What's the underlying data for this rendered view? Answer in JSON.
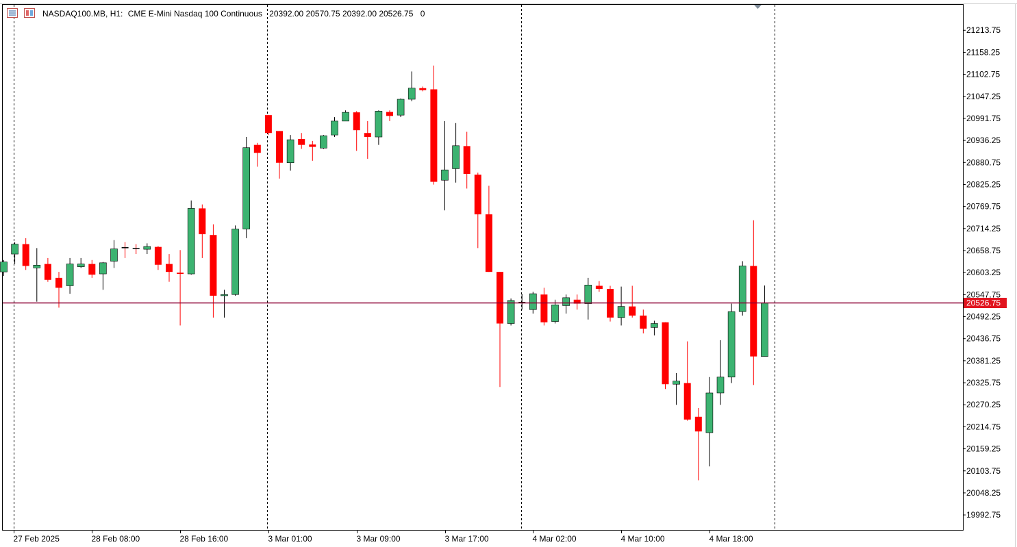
{
  "header": {
    "symbol": "NASDAQ100.MB, H1:",
    "description": "CME E-Mini Nasdaq 100 Continuous",
    "ohlc": "20392.00 20570.75 20392.00 20526.75",
    "extra": "0"
  },
  "colors": {
    "bull": "#3cb371",
    "bear": "#ff0000",
    "price_line": "#8b0033",
    "price_tag_bg": "#e1141e",
    "grid": "#000000"
  },
  "chart_data": {
    "type": "candlestick",
    "symbol": "NASDAQ100.MB",
    "timeframe": "H1",
    "title": "CME E-Mini Nasdaq 100 Continuous",
    "current_price": 20526.75,
    "current_price_label": "20526.75",
    "ylim": [
      19955,
      21278
    ],
    "y_ticks": [
      "21213.75",
      "21158.25",
      "21102.75",
      "21047.25",
      "20991.75",
      "20936.25",
      "20880.75",
      "20825.25",
      "20769.75",
      "20714.25",
      "20658.75",
      "20603.25",
      "20547.75",
      "20492.25",
      "20436.75",
      "20381.25",
      "20325.75",
      "20270.25",
      "20214.75",
      "20159.25",
      "20103.75",
      "20048.25",
      "19992.75"
    ],
    "x_ticks": [
      "27 Feb 2025",
      "28 Feb 08:00",
      "28 Feb 16:00",
      "3 Mar 01:00",
      "3 Mar 09:00",
      "3 Mar 17:00",
      "4 Mar 02:00",
      "4 Mar 10:00",
      "4 Mar 18:00"
    ],
    "x_tick_bar_index": [
      0.9,
      8,
      16,
      24,
      32,
      40,
      48,
      56,
      64
    ],
    "separator_bar_index": [
      0.9,
      23.9,
      46.9,
      69.9
    ],
    "candles": [
      {
        "o": 20605,
        "h": 20635,
        "l": 20595,
        "c": 20630
      },
      {
        "o": 20650,
        "h": 20680,
        "l": 20625,
        "c": 20675
      },
      {
        "o": 20675,
        "h": 20690,
        "l": 20610,
        "c": 20620
      },
      {
        "o": 20615,
        "h": 20665,
        "l": 20530,
        "c": 20622
      },
      {
        "o": 20625,
        "h": 20640,
        "l": 20580,
        "c": 20585
      },
      {
        "o": 20590,
        "h": 20605,
        "l": 20515,
        "c": 20565
      },
      {
        "o": 20570,
        "h": 20640,
        "l": 20550,
        "c": 20625
      },
      {
        "o": 20618,
        "h": 20640,
        "l": 20615,
        "c": 20625
      },
      {
        "o": 20625,
        "h": 20635,
        "l": 20590,
        "c": 20598
      },
      {
        "o": 20600,
        "h": 20630,
        "l": 20560,
        "c": 20628
      },
      {
        "o": 20632,
        "h": 20685,
        "l": 20615,
        "c": 20663
      },
      {
        "o": 20666,
        "h": 20680,
        "l": 20640,
        "c": 20664
      },
      {
        "o": 20664,
        "h": 20675,
        "l": 20650,
        "c": 20662
      },
      {
        "o": 20662,
        "h": 20677,
        "l": 20650,
        "c": 20669
      },
      {
        "o": 20668,
        "h": 20670,
        "l": 20610,
        "c": 20623
      },
      {
        "o": 20625,
        "h": 20650,
        "l": 20580,
        "c": 20605
      },
      {
        "o": 20603,
        "h": 20660,
        "l": 20470,
        "c": 20600
      },
      {
        "o": 20600,
        "h": 20785,
        "l": 20598,
        "c": 20765
      },
      {
        "o": 20765,
        "h": 20775,
        "l": 20640,
        "c": 20700
      },
      {
        "o": 20698,
        "h": 20725,
        "l": 20490,
        "c": 20545
      },
      {
        "o": 20545,
        "h": 20560,
        "l": 20490,
        "c": 20548
      },
      {
        "o": 20548,
        "h": 20722,
        "l": 20545,
        "c": 20713
      },
      {
        "o": 20713,
        "h": 20945,
        "l": 20690,
        "c": 20918
      },
      {
        "o": 20925,
        "h": 20930,
        "l": 20870,
        "c": 20905
      },
      {
        "o": 21000,
        "h": 21000,
        "l": 20950,
        "c": 20955
      },
      {
        "o": 20960,
        "h": 20960,
        "l": 20840,
        "c": 20880
      },
      {
        "o": 20880,
        "h": 20950,
        "l": 20860,
        "c": 20938
      },
      {
        "o": 20940,
        "h": 20955,
        "l": 20915,
        "c": 20925
      },
      {
        "o": 20926,
        "h": 20935,
        "l": 20885,
        "c": 20920
      },
      {
        "o": 20917,
        "h": 20950,
        "l": 20915,
        "c": 20948
      },
      {
        "o": 20950,
        "h": 20995,
        "l": 20945,
        "c": 20985
      },
      {
        "o": 20985,
        "h": 21012,
        "l": 20985,
        "c": 21007
      },
      {
        "o": 21007,
        "h": 21010,
        "l": 20910,
        "c": 20962
      },
      {
        "o": 20955,
        "h": 20985,
        "l": 20890,
        "c": 20945
      },
      {
        "o": 20945,
        "h": 21012,
        "l": 20925,
        "c": 21010
      },
      {
        "o": 21008,
        "h": 21012,
        "l": 20985,
        "c": 20998
      },
      {
        "o": 21000,
        "h": 21042,
        "l": 20995,
        "c": 21040
      },
      {
        "o": 21040,
        "h": 21110,
        "l": 21035,
        "c": 21068
      },
      {
        "o": 21068,
        "h": 21072,
        "l": 21060,
        "c": 21063
      },
      {
        "o": 21065,
        "h": 21125,
        "l": 20825,
        "c": 20832
      },
      {
        "o": 20836,
        "h": 20985,
        "l": 20760,
        "c": 20862
      },
      {
        "o": 20865,
        "h": 20980,
        "l": 20830,
        "c": 20923
      },
      {
        "o": 20922,
        "h": 20958,
        "l": 20815,
        "c": 20852
      },
      {
        "o": 20850,
        "h": 20855,
        "l": 20665,
        "c": 20750
      },
      {
        "o": 20750,
        "h": 20822,
        "l": 20605,
        "c": 20605
      },
      {
        "o": 20605,
        "h": 20605,
        "l": 20315,
        "c": 20475
      },
      {
        "o": 20475,
        "h": 20538,
        "l": 20470,
        "c": 20533
      },
      {
        "o": 20527,
        "h": 20550,
        "l": 20510,
        "c": 20528
      },
      {
        "o": 20510,
        "h": 20555,
        "l": 20500,
        "c": 20550
      },
      {
        "o": 20548,
        "h": 20565,
        "l": 20470,
        "c": 20478
      },
      {
        "o": 20480,
        "h": 20535,
        "l": 20475,
        "c": 20522
      },
      {
        "o": 20520,
        "h": 20548,
        "l": 20500,
        "c": 20540
      },
      {
        "o": 20535,
        "h": 20548,
        "l": 20510,
        "c": 20525
      },
      {
        "o": 20525,
        "h": 20590,
        "l": 20485,
        "c": 20572
      },
      {
        "o": 20570,
        "h": 20582,
        "l": 20555,
        "c": 20562
      },
      {
        "o": 20562,
        "h": 20570,
        "l": 20480,
        "c": 20490
      },
      {
        "o": 20490,
        "h": 20568,
        "l": 20470,
        "c": 20518
      },
      {
        "o": 20518,
        "h": 20570,
        "l": 20490,
        "c": 20495
      },
      {
        "o": 20495,
        "h": 20510,
        "l": 20450,
        "c": 20462
      },
      {
        "o": 20465,
        "h": 20482,
        "l": 20445,
        "c": 20475
      },
      {
        "o": 20478,
        "h": 20478,
        "l": 20310,
        "c": 20322
      },
      {
        "o": 20322,
        "h": 20350,
        "l": 20270,
        "c": 20330
      },
      {
        "o": 20325,
        "h": 20430,
        "l": 20230,
        "c": 20233
      },
      {
        "o": 20240,
        "h": 20262,
        "l": 20080,
        "c": 20203
      },
      {
        "o": 20200,
        "h": 20340,
        "l": 20115,
        "c": 20300
      },
      {
        "o": 20300,
        "h": 20433,
        "l": 20270,
        "c": 20340
      },
      {
        "o": 20340,
        "h": 20525,
        "l": 20325,
        "c": 20505
      },
      {
        "o": 20505,
        "h": 20632,
        "l": 20495,
        "c": 20620
      },
      {
        "o": 20620,
        "h": 20735,
        "l": 20320,
        "c": 20392
      },
      {
        "o": 20392,
        "h": 20570.75,
        "l": 20392,
        "c": 20526.75
      }
    ]
  }
}
